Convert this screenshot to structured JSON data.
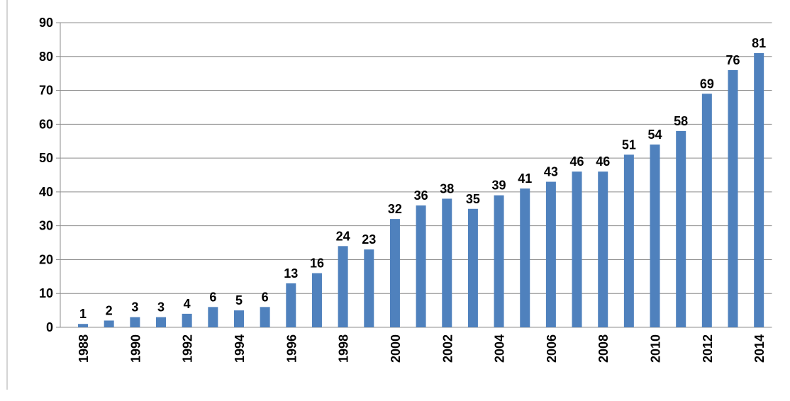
{
  "chart_data": {
    "type": "bar",
    "categories": [
      "1988",
      null,
      "1990",
      null,
      "1992",
      null,
      "1994",
      null,
      "1996",
      null,
      "1998",
      null,
      "2000",
      null,
      "2002",
      null,
      "2004",
      null,
      "2006",
      null,
      "2008",
      null,
      "2010",
      null,
      "2012",
      null,
      "2014"
    ],
    "values": [
      1,
      2,
      3,
      3,
      4,
      6,
      5,
      6,
      13,
      16,
      24,
      23,
      32,
      36,
      38,
      35,
      39,
      41,
      43,
      46,
      46,
      51,
      54,
      58,
      69,
      76,
      81
    ],
    "color": "#4f81bd",
    "ylim": [
      0,
      90
    ],
    "yticks": [
      0,
      10,
      20,
      30,
      40,
      50,
      60,
      70,
      80,
      90
    ],
    "grid": true
  }
}
